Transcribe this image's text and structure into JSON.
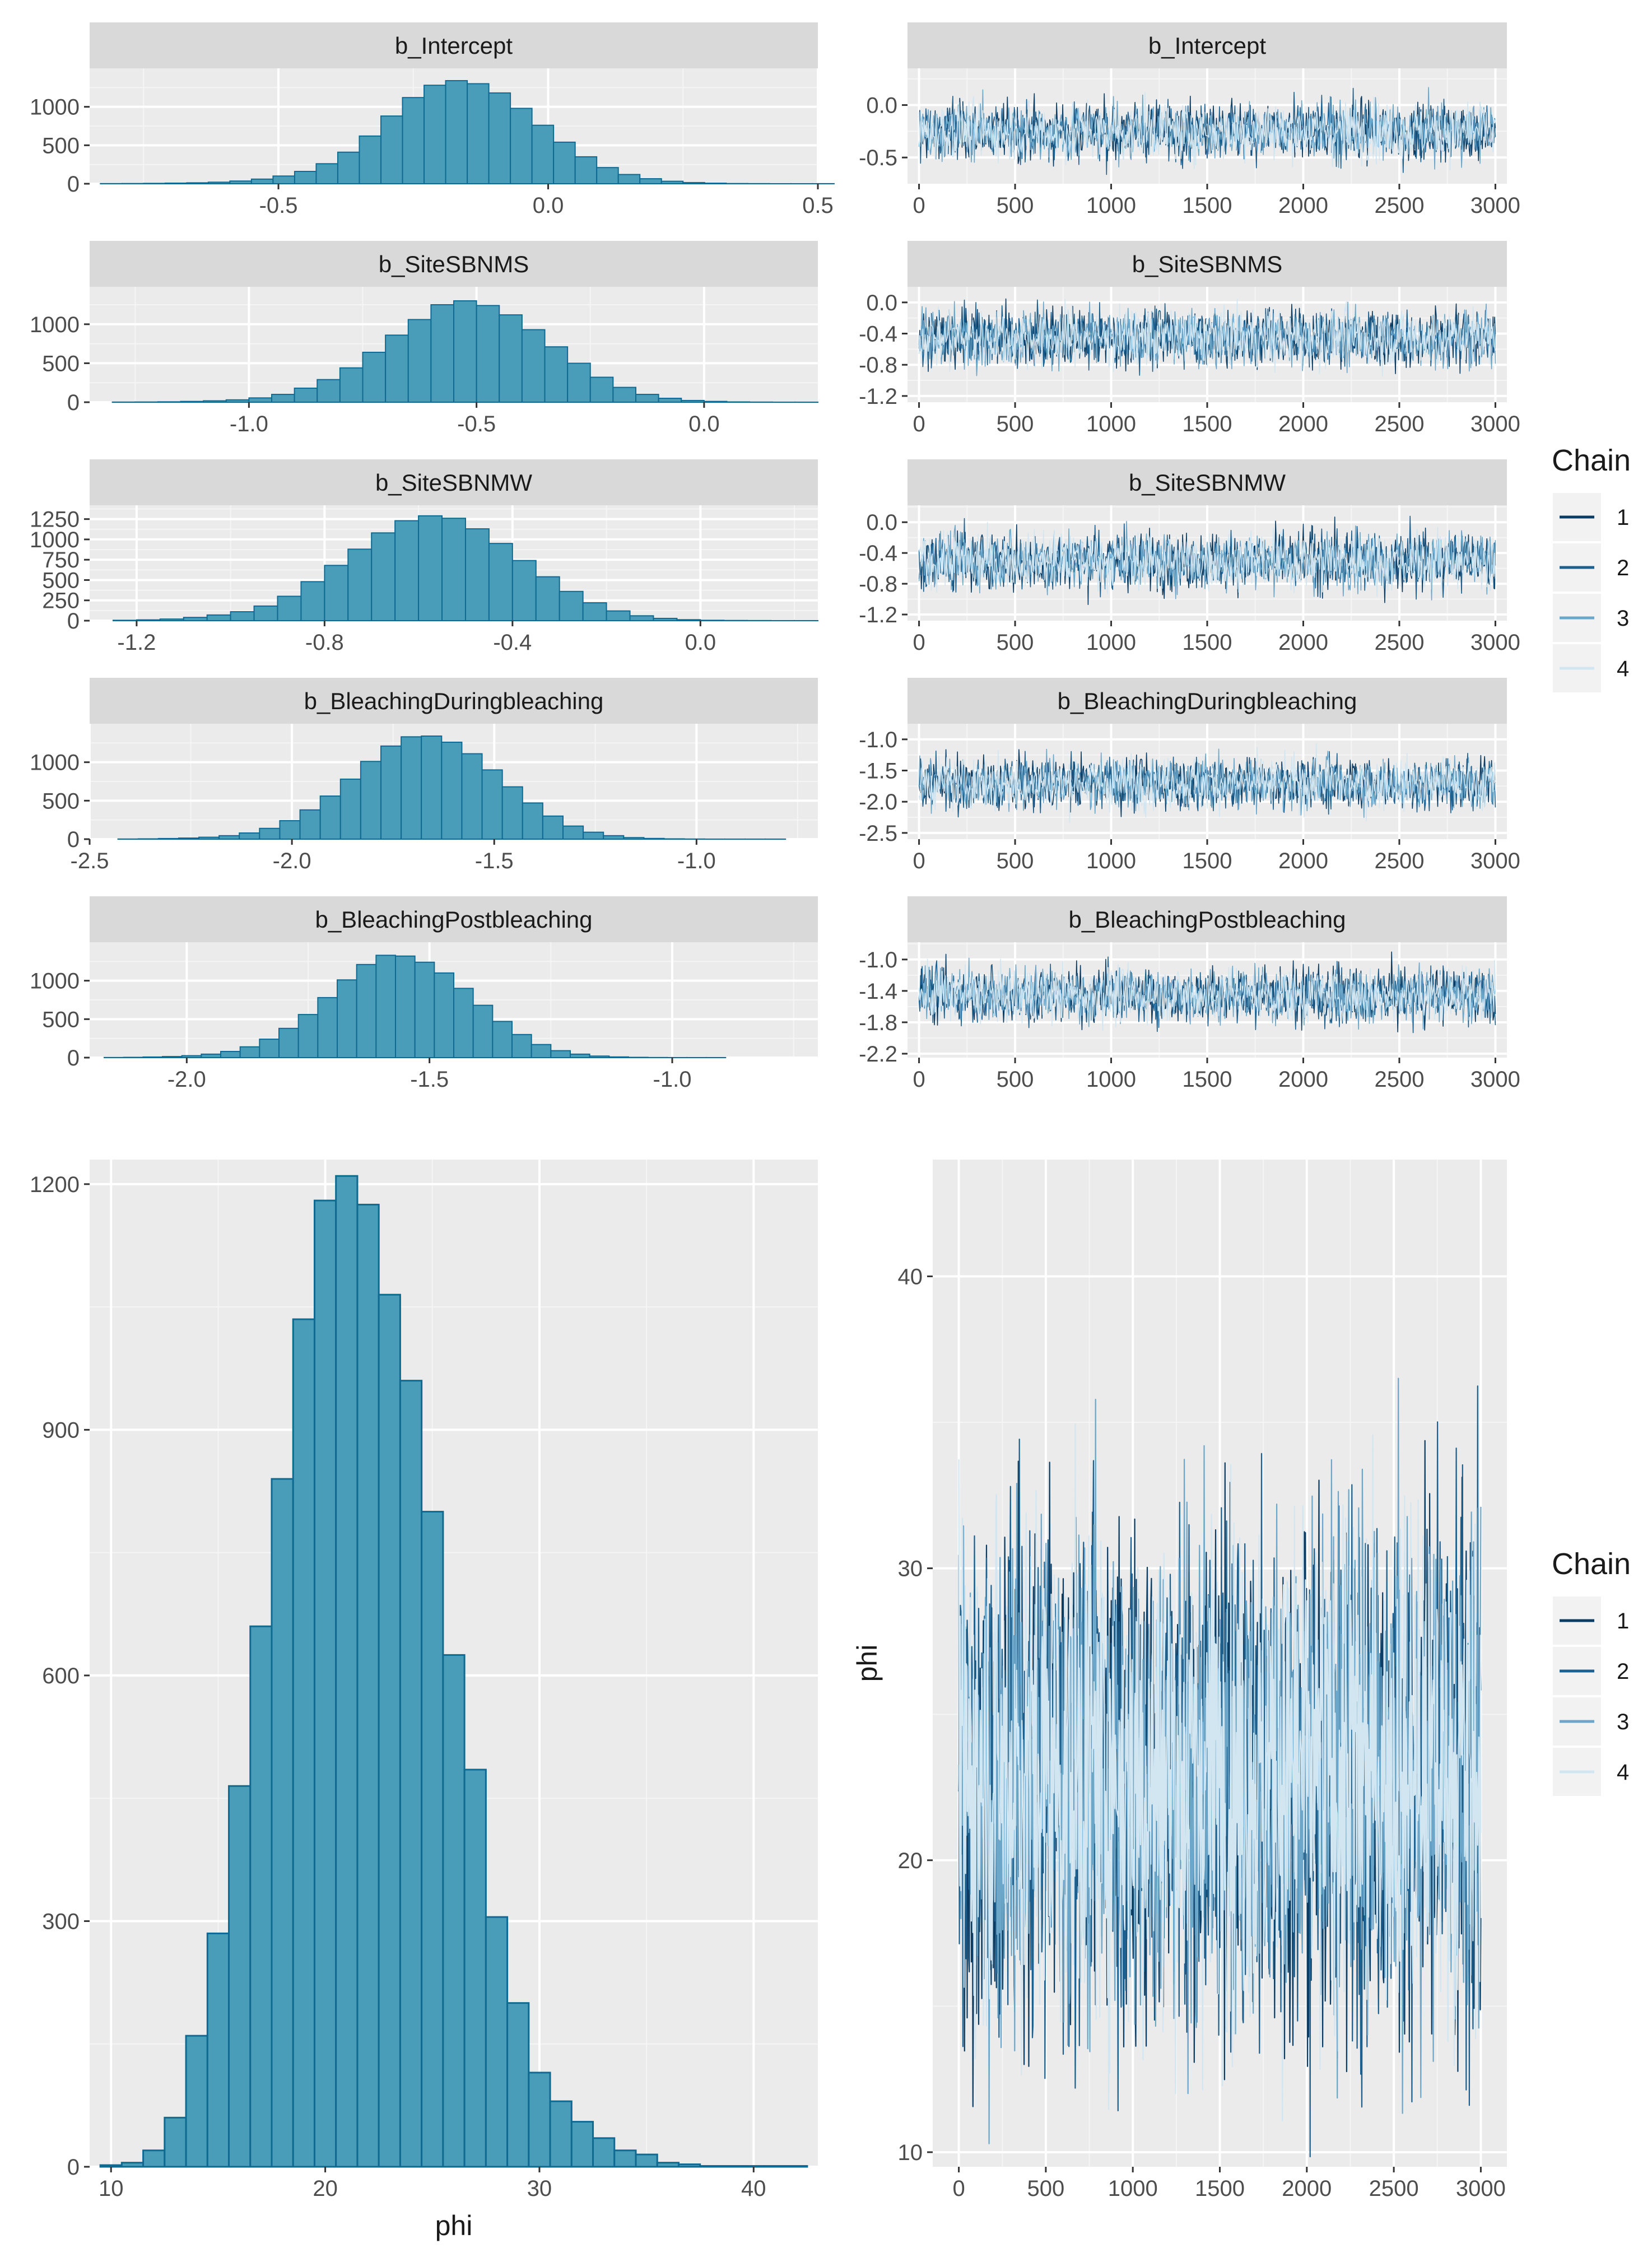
{
  "chart_data": [
    {
      "id": "hist_intercept",
      "type": "bar",
      "title": "b_Intercept",
      "x_ticks": [
        "-0.5",
        "0.0",
        "0.5"
      ],
      "x_tick_values": [
        -0.5,
        0.0,
        0.5
      ],
      "xlim": [
        -0.85,
        0.5
      ],
      "y_ticks": [
        "0",
        "500",
        "1000"
      ],
      "y_tick_values": [
        0,
        500,
        1000
      ],
      "ylim": [
        0,
        1500
      ],
      "bin_start": -0.83,
      "bin_width": 0.04,
      "values": [
        2,
        3,
        5,
        8,
        12,
        20,
        35,
        60,
        100,
        160,
        260,
        410,
        620,
        880,
        1120,
        1280,
        1340,
        1300,
        1180,
        980,
        760,
        540,
        350,
        210,
        120,
        65,
        32,
        15,
        7,
        3,
        2,
        1,
        1,
        1
      ]
    },
    {
      "id": "hist_sitesbnms",
      "type": "bar",
      "title": "b_SiteSBNMS",
      "x_ticks": [
        "-1.0",
        "-0.5",
        "0.0"
      ],
      "x_tick_values": [
        -1.0,
        -0.5,
        0.0
      ],
      "xlim": [
        -1.35,
        0.25
      ],
      "y_ticks": [
        "0",
        "500",
        "1000"
      ],
      "y_tick_values": [
        0,
        500,
        1000
      ],
      "ylim": [
        0,
        1480
      ],
      "bin_start": -1.3,
      "bin_width": 0.05,
      "values": [
        2,
        3,
        5,
        10,
        18,
        30,
        55,
        100,
        180,
        290,
        440,
        640,
        860,
        1060,
        1250,
        1300,
        1240,
        1120,
        930,
        710,
        500,
        320,
        190,
        100,
        50,
        22,
        10,
        4,
        2,
        1,
        1
      ]
    },
    {
      "id": "hist_sitesbnmw",
      "type": "bar",
      "title": "b_SiteSBNMW",
      "x_ticks": [
        "-1.2",
        "-0.8",
        "-0.4",
        "0.0"
      ],
      "x_tick_values": [
        -1.2,
        -0.8,
        -0.4,
        0.0
      ],
      "xlim": [
        -1.3,
        0.25
      ],
      "y_ticks": [
        "0",
        "250",
        "500",
        "750",
        "1000",
        "1250"
      ],
      "y_tick_values": [
        0,
        250,
        500,
        750,
        1000,
        1250
      ],
      "ylim": [
        0,
        1420
      ],
      "bin_start": -1.25,
      "bin_width": 0.05,
      "values": [
        5,
        10,
        20,
        40,
        70,
        110,
        180,
        300,
        480,
        680,
        880,
        1080,
        1230,
        1290,
        1260,
        1130,
        950,
        740,
        540,
        360,
        220,
        120,
        60,
        28,
        12,
        5,
        3,
        2,
        1,
        1
      ]
    },
    {
      "id": "hist_duringbleaching",
      "type": "bar",
      "title": "b_BleachingDuringbleaching",
      "x_ticks": [
        "-2.5",
        "-2.0",
        "-1.5",
        "-1.0"
      ],
      "x_tick_values": [
        -2.5,
        -2.0,
        -1.5,
        -1.0
      ],
      "xlim": [
        -2.5,
        -0.7
      ],
      "y_ticks": [
        "0",
        "500",
        "1000"
      ],
      "y_tick_values": [
        0,
        500,
        1000
      ],
      "ylim": [
        0,
        1500
      ],
      "bin_start": -2.43,
      "bin_width": 0.05,
      "values": [
        2,
        4,
        8,
        14,
        25,
        45,
        80,
        140,
        240,
        380,
        560,
        780,
        1010,
        1210,
        1330,
        1340,
        1260,
        1110,
        900,
        680,
        470,
        300,
        170,
        90,
        45,
        20,
        9,
        4,
        2,
        1,
        1,
        1,
        1
      ]
    },
    {
      "id": "hist_postbleaching",
      "type": "bar",
      "title": "b_BleachingPostbleaching",
      "x_ticks": [
        "-2.0",
        "-1.5",
        "-1.0"
      ],
      "x_tick_values": [
        -2.0,
        -1.5,
        -1.0
      ],
      "xlim": [
        -2.2,
        -0.7
      ],
      "y_ticks": [
        "0",
        "500",
        "1000"
      ],
      "y_tick_values": [
        0,
        500,
        1000
      ],
      "ylim": [
        0,
        1500
      ],
      "bin_start": -2.17,
      "bin_width": 0.04,
      "values": [
        2,
        4,
        8,
        14,
        25,
        45,
        80,
        140,
        240,
        380,
        560,
        780,
        1010,
        1210,
        1330,
        1320,
        1240,
        1100,
        900,
        680,
        470,
        300,
        170,
        90,
        45,
        20,
        9,
        4,
        2,
        1,
        1,
        1
      ]
    },
    {
      "id": "hist_phi",
      "type": "bar",
      "title": "",
      "xlabel": "phi",
      "x_ticks": [
        "10",
        "20",
        "30",
        "40"
      ],
      "x_tick_values": [
        10,
        20,
        30,
        40
      ],
      "xlim": [
        9,
        43
      ],
      "y_ticks": [
        "0",
        "300",
        "600",
        "900",
        "1200"
      ],
      "y_tick_values": [
        0,
        300,
        600,
        900,
        1200
      ],
      "ylim": [
        0,
        1230
      ],
      "bin_start": 9.5,
      "bin_width": 1,
      "values": [
        2,
        5,
        20,
        60,
        160,
        285,
        465,
        660,
        840,
        1035,
        1180,
        1210,
        1175,
        1065,
        960,
        800,
        625,
        485,
        305,
        200,
        115,
        80,
        55,
        35,
        20,
        15,
        5,
        3,
        1,
        1,
        1,
        1,
        1
      ]
    },
    {
      "id": "trace_intercept",
      "type": "line",
      "title": "b_Intercept",
      "x_ticks": [
        "0",
        "500",
        "1000",
        "1500",
        "2000",
        "2500",
        "3000"
      ],
      "x_tick_values": [
        0,
        500,
        1000,
        1500,
        2000,
        2500,
        3000
      ],
      "xlim": [
        -60,
        3060
      ],
      "y_ticks": [
        "0.0",
        "-0.5"
      ],
      "y_tick_values": [
        0.0,
        -0.5
      ],
      "ylim": [
        -0.75,
        0.35
      ],
      "iterations": 3000,
      "chain_mean": -0.25,
      "chain_sd": 0.13,
      "series": [
        {
          "name": "1"
        },
        {
          "name": "2"
        },
        {
          "name": "3"
        },
        {
          "name": "4"
        }
      ]
    },
    {
      "id": "trace_sitesbnms",
      "type": "line",
      "title": "b_SiteSBNMS",
      "x_ticks": [
        "0",
        "500",
        "1000",
        "1500",
        "2000",
        "2500",
        "3000"
      ],
      "x_tick_values": [
        0,
        500,
        1000,
        1500,
        2000,
        2500,
        3000
      ],
      "xlim": [
        -60,
        3060
      ],
      "y_ticks": [
        "0.0",
        "-0.4",
        "-0.8",
        "-1.2"
      ],
      "y_tick_values": [
        0.0,
        -0.4,
        -0.8,
        -1.2
      ],
      "ylim": [
        -1.28,
        0.2
      ],
      "iterations": 3000,
      "chain_mean": -0.45,
      "chain_sd": 0.18,
      "series": [
        {
          "name": "1"
        },
        {
          "name": "2"
        },
        {
          "name": "3"
        },
        {
          "name": "4"
        }
      ]
    },
    {
      "id": "trace_sitesbnmw",
      "type": "line",
      "title": "b_SiteSBNMW",
      "x_ticks": [
        "0",
        "500",
        "1000",
        "1500",
        "2000",
        "2500",
        "3000"
      ],
      "x_tick_values": [
        0,
        500,
        1000,
        1500,
        2000,
        2500,
        3000
      ],
      "xlim": [
        -60,
        3060
      ],
      "y_ticks": [
        "0.0",
        "-0.4",
        "-0.8",
        "-1.2"
      ],
      "y_tick_values": [
        0.0,
        -0.4,
        -0.8,
        -1.2
      ],
      "ylim": [
        -1.28,
        0.22
      ],
      "iterations": 3000,
      "chain_mean": -0.5,
      "chain_sd": 0.18,
      "series": [
        {
          "name": "1"
        },
        {
          "name": "2"
        },
        {
          "name": "3"
        },
        {
          "name": "4"
        }
      ]
    },
    {
      "id": "trace_duringbleaching",
      "type": "line",
      "title": "b_BleachingDuringbleaching",
      "x_ticks": [
        "0",
        "500",
        "1000",
        "1500",
        "2000",
        "2500",
        "3000"
      ],
      "x_tick_values": [
        0,
        500,
        1000,
        1500,
        2000,
        2500,
        3000
      ],
      "xlim": [
        -60,
        3060
      ],
      "y_ticks": [
        "-1.0",
        "-1.5",
        "-2.0",
        "-2.5"
      ],
      "y_tick_values": [
        -1.0,
        -1.5,
        -2.0,
        -2.5
      ],
      "ylim": [
        -2.6,
        -0.75
      ],
      "iterations": 3000,
      "chain_mean": -1.7,
      "chain_sd": 0.2,
      "series": [
        {
          "name": "1"
        },
        {
          "name": "2"
        },
        {
          "name": "3"
        },
        {
          "name": "4"
        }
      ]
    },
    {
      "id": "trace_postbleaching",
      "type": "line",
      "title": "b_BleachingPostbleaching",
      "x_ticks": [
        "0",
        "500",
        "1000",
        "1500",
        "2000",
        "2500",
        "3000"
      ],
      "x_tick_values": [
        0,
        500,
        1000,
        1500,
        2000,
        2500,
        3000
      ],
      "xlim": [
        -60,
        3060
      ],
      "y_ticks": [
        "-1.0",
        "-1.4",
        "-1.8",
        "-2.2"
      ],
      "y_tick_values": [
        -1.0,
        -1.4,
        -1.8,
        -2.2
      ],
      "ylim": [
        -2.25,
        -0.78
      ],
      "iterations": 3000,
      "chain_mean": -1.45,
      "chain_sd": 0.17,
      "series": [
        {
          "name": "1"
        },
        {
          "name": "2"
        },
        {
          "name": "3"
        },
        {
          "name": "4"
        }
      ]
    },
    {
      "id": "trace_phi",
      "type": "line",
      "title": "",
      "ylabel": "phi",
      "x_ticks": [
        "0",
        "500",
        "1000",
        "1500",
        "2000",
        "2500",
        "3000"
      ],
      "x_tick_values": [
        0,
        500,
        1000,
        1500,
        2000,
        2500,
        3000
      ],
      "xlim": [
        -150,
        3150
      ],
      "y_ticks": [
        "10",
        "20",
        "30",
        "40"
      ],
      "y_tick_values": [
        10,
        20,
        30,
        40
      ],
      "ylim": [
        9.5,
        44
      ],
      "iterations": 3000,
      "chain_mean": 23,
      "chain_sd": 4.2,
      "series": [
        {
          "name": "1"
        },
        {
          "name": "2"
        },
        {
          "name": "3"
        },
        {
          "name": "4"
        }
      ]
    }
  ],
  "legends": [
    {
      "title": "Chain",
      "entries": [
        "1",
        "2",
        "3",
        "4"
      ]
    },
    {
      "title": "Chain",
      "entries": [
        "1",
        "2",
        "3",
        "4"
      ]
    }
  ],
  "colors": {
    "hist_fill": "#4A9DB8",
    "hist_stroke": "#0F6A92",
    "panel_bg": "#EBEBEB",
    "grid_major": "#FFFFFF",
    "strip_bg": "#D9D9D9",
    "chain_colors": [
      "#0B3C63",
      "#1D5F8D",
      "#6CA6C8",
      "#D1E6F1"
    ]
  }
}
